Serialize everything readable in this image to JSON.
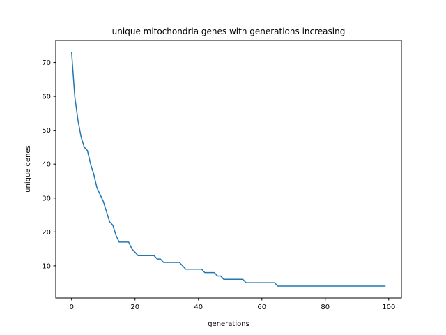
{
  "chart_data": {
    "type": "line",
    "title": "unique mitochondria genes with generations increasing",
    "xlabel": "generations",
    "ylabel": "unique genes",
    "xlim": [
      -5,
      104
    ],
    "ylim": [
      0.5,
      76.5
    ],
    "xticks": [
      0,
      20,
      40,
      60,
      80,
      100
    ],
    "yticks": [
      10,
      20,
      30,
      40,
      50,
      60,
      70
    ],
    "grid": false,
    "legend": "none",
    "color": "#1f77b4",
    "series": [
      {
        "x": [
          0,
          1,
          2,
          3,
          4,
          5,
          6,
          7,
          8,
          9,
          10,
          11,
          12,
          13,
          14,
          15,
          16,
          17,
          18,
          19,
          20,
          21,
          22,
          23,
          24,
          25,
          26,
          27,
          28,
          29,
          30,
          31,
          32,
          33,
          34,
          35,
          36,
          37,
          38,
          39,
          40,
          41,
          42,
          43,
          44,
          45,
          46,
          47,
          48,
          49,
          50,
          51,
          52,
          53,
          54,
          55,
          56,
          57,
          58,
          59,
          60,
          61,
          62,
          63,
          64,
          65,
          66,
          67,
          68,
          69,
          70,
          71,
          72,
          73,
          74,
          75,
          76,
          77,
          78,
          79,
          80,
          81,
          82,
          83,
          84,
          85,
          86,
          87,
          88,
          89,
          90,
          91,
          92,
          93,
          94,
          95,
          96,
          97,
          98,
          99
        ],
        "values": [
          73,
          60,
          53,
          48,
          45,
          44,
          40,
          37,
          33,
          31,
          29,
          26,
          23,
          22,
          19,
          17,
          17,
          17,
          17,
          15,
          14,
          13,
          13,
          13,
          13,
          13,
          13,
          12,
          12,
          11,
          11,
          11,
          11,
          11,
          11,
          10,
          9,
          9,
          9,
          9,
          9,
          9,
          8,
          8,
          8,
          8,
          7,
          7,
          6,
          6,
          6,
          6,
          6,
          6,
          6,
          5,
          5,
          5,
          5,
          5,
          5,
          5,
          5,
          5,
          5,
          4,
          4,
          4,
          4,
          4,
          4,
          4,
          4,
          4,
          4,
          4,
          4,
          4,
          4,
          4,
          4,
          4,
          4,
          4,
          4,
          4,
          4,
          4,
          4,
          4,
          4,
          4,
          4,
          4,
          4,
          4,
          4,
          4,
          4,
          4
        ]
      }
    ]
  }
}
